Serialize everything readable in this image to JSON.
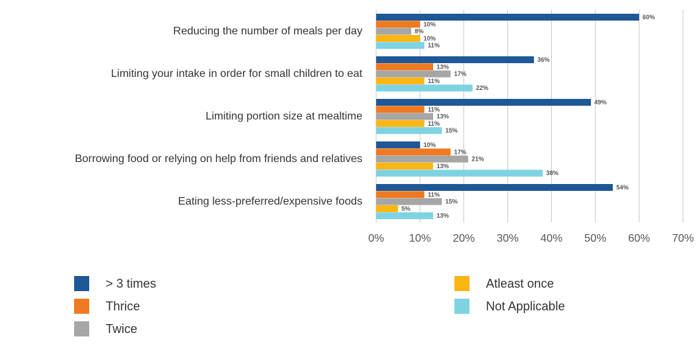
{
  "chart_data": {
    "type": "bar",
    "orientation": "horizontal",
    "categories": [
      "Reducing the number of meals per day",
      "Limiting your intake in order for small children to eat",
      "Limiting portion size at mealtime",
      "Borrowing food or relying on help from friends and relatives",
      "Eating less-preferred/expensive foods"
    ],
    "series": [
      {
        "name": "> 3 times",
        "color": "#1f5896",
        "values": [
          60,
          36,
          49,
          10,
          54
        ]
      },
      {
        "name": "Thrice",
        "color": "#f07a21",
        "values": [
          10,
          13,
          11,
          17,
          11
        ]
      },
      {
        "name": "Twice",
        "color": "#a6a6a6",
        "values": [
          8,
          17,
          13,
          21,
          15
        ]
      },
      {
        "name": "Atleast once",
        "color": "#fbb614",
        "values": [
          10,
          11,
          11,
          13,
          5
        ]
      },
      {
        "name": "Not Applicable",
        "color": "#7ed3e2",
        "values": [
          11,
          22,
          15,
          38,
          13
        ]
      }
    ],
    "xlim": [
      0,
      70
    ],
    "x_ticks": [
      "0%",
      "10%",
      "20%",
      "30%",
      "40%",
      "50%",
      "60%",
      "70%"
    ],
    "value_suffix": "%",
    "grid": true,
    "legend_position": "bottom",
    "title": "",
    "xlabel": "",
    "ylabel": ""
  }
}
